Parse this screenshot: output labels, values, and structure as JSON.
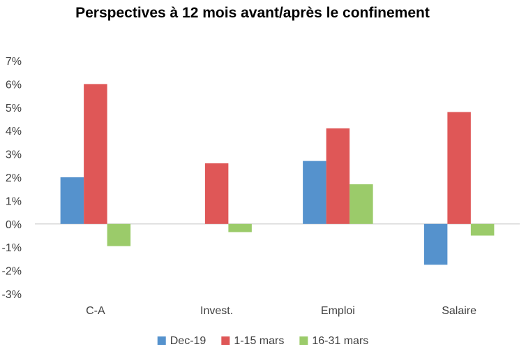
{
  "chart_data": {
    "type": "bar",
    "title": "Perspectives à 12 mois avant/après le confinement",
    "xlabel": "",
    "ylabel": "",
    "categories": [
      "C-A",
      "Invest.",
      "Emploi",
      "Salaire"
    ],
    "series": [
      {
        "name": "Dec-19",
        "color": "#5592CD",
        "values": [
          2.0,
          null,
          2.7,
          -1.75
        ]
      },
      {
        "name": "1-15 mars",
        "color": "#DF5757",
        "values": [
          6.0,
          2.6,
          4.1,
          4.8
        ]
      },
      {
        "name": "16-31 mars",
        "color": "#9BCB6A",
        "values": [
          -0.95,
          -0.35,
          1.7,
          -0.5
        ]
      }
    ],
    "ylim": [
      -3,
      7
    ],
    "ytick_values": [
      -3,
      -2,
      -1,
      0,
      1,
      2,
      3,
      4,
      5,
      6,
      7
    ],
    "ytick_labels": [
      "-3%",
      "-2%",
      "-1%",
      "0%",
      "1%",
      "2%",
      "3%",
      "4%",
      "5%",
      "6%",
      "7%"
    ],
    "grid": false,
    "legend_position": "bottom",
    "zero_line_color": "#d9d9d9"
  }
}
